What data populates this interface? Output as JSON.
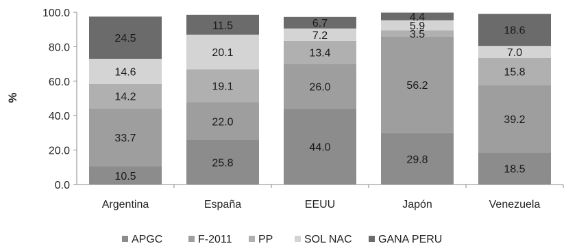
{
  "chart_data": {
    "type": "bar",
    "stacked": true,
    "title": "",
    "xlabel": "",
    "ylabel": "%",
    "ylim": [
      0,
      100
    ],
    "yticks": [
      "0.0",
      "20.0",
      "40.0",
      "60.0",
      "80.0",
      "100.0"
    ],
    "grid": false,
    "legend_position": "bottom",
    "categories": [
      "Argentina",
      "España",
      "EEUU",
      "Japón",
      "Venezuela"
    ],
    "series": [
      {
        "name": "APGC",
        "color": "#8c8c8c",
        "values": [
          10.5,
          25.8,
          44.0,
          29.8,
          18.5
        ],
        "labels": [
          "10.5",
          "25.8",
          "44.0",
          "29.8",
          "18.5"
        ]
      },
      {
        "name": "F-2011",
        "color": "#9e9e9e",
        "values": [
          33.7,
          22.0,
          26.0,
          56.2,
          39.2
        ],
        "labels": [
          "33.7",
          "22.0",
          "26.0",
          "56.2",
          "39.2"
        ]
      },
      {
        "name": "PP",
        "color": "#b0b0b0",
        "values": [
          14.2,
          19.1,
          13.4,
          3.5,
          15.8
        ],
        "labels": [
          "14.2",
          "19.1",
          "13.4",
          "3.5",
          "15.8"
        ]
      },
      {
        "name": "SOL NAC",
        "color": "#d4d4d4",
        "values": [
          14.6,
          20.1,
          7.2,
          5.9,
          7.0
        ],
        "labels": [
          "14.6",
          "20.1",
          "7.2",
          "5.9",
          "7.0"
        ]
      },
      {
        "name": "GANA PERU",
        "color": "#6b6b6b",
        "values": [
          24.5,
          11.5,
          6.7,
          4.4,
          18.6
        ],
        "labels": [
          "24.5",
          "11.5",
          "6.7",
          "4.4",
          "18.6"
        ]
      }
    ]
  }
}
